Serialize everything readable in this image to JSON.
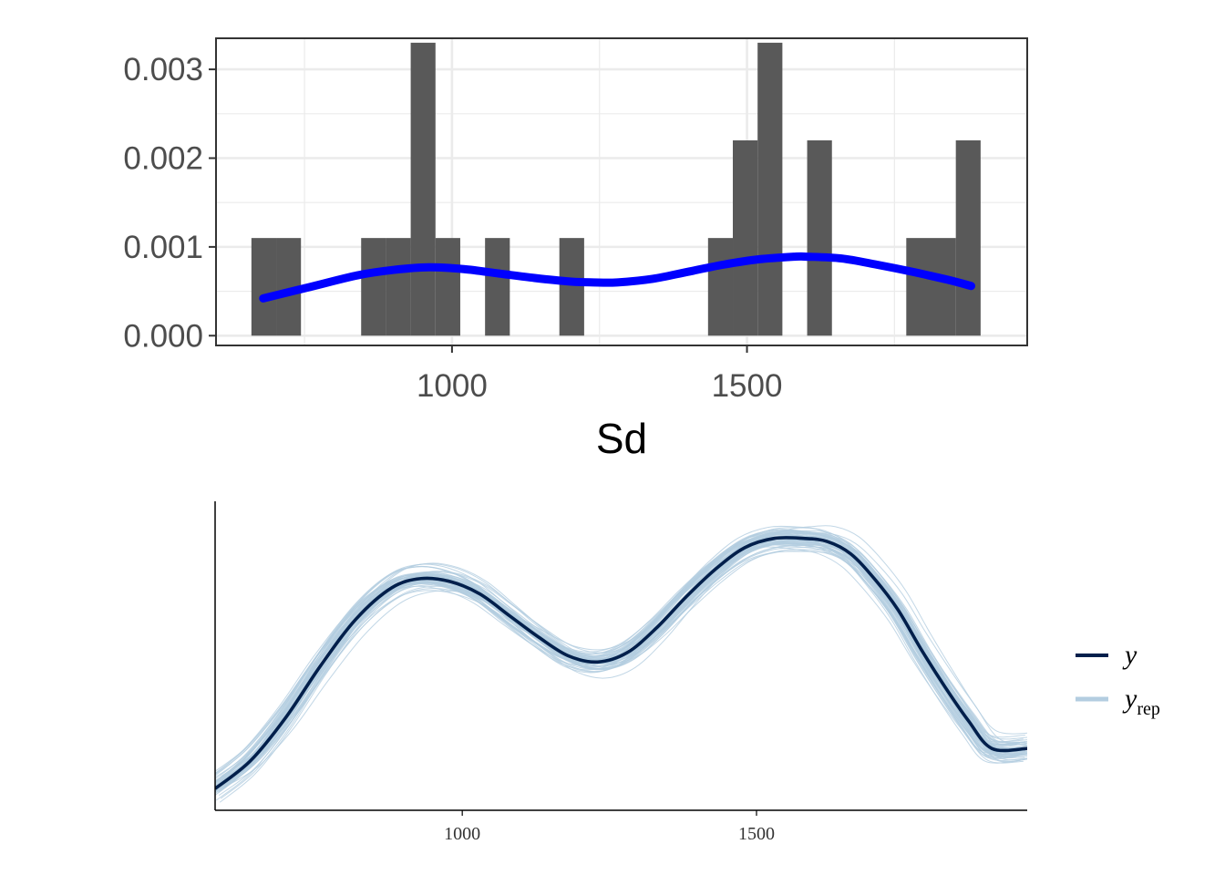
{
  "chart_data": [
    {
      "type": "bar",
      "subtype": "histogram",
      "title": "",
      "xlabel": "Sd",
      "ylabel": "",
      "xlim": [
        600,
        1975
      ],
      "ylim": [
        -0.00011,
        0.00335
      ],
      "x_ticks": [
        1000,
        1500
      ],
      "x_tick_labels": [
        "1000",
        "1500"
      ],
      "y_ticks": [
        0.0,
        0.001,
        0.002,
        0.003
      ],
      "y_tick_labels": [
        "0.000",
        "0.001",
        "0.002",
        "0.003"
      ],
      "grid": true,
      "bar_color": "#595959",
      "bins": [
        {
          "x0": 660,
          "x1": 702,
          "value": 0.0011
        },
        {
          "x0": 702,
          "x1": 744,
          "value": 0.0011
        },
        {
          "x0": 846,
          "x1": 888,
          "value": 0.0011
        },
        {
          "x0": 888,
          "x1": 930,
          "value": 0.0011
        },
        {
          "x0": 930,
          "x1": 972,
          "value": 0.0033
        },
        {
          "x0": 972,
          "x1": 1014,
          "value": 0.0011
        },
        {
          "x0": 1056,
          "x1": 1098,
          "value": 0.0011
        },
        {
          "x0": 1182,
          "x1": 1224,
          "value": 0.0011
        },
        {
          "x0": 1434,
          "x1": 1476,
          "value": 0.0011
        },
        {
          "x0": 1476,
          "x1": 1518,
          "value": 0.0022
        },
        {
          "x0": 1518,
          "x1": 1560,
          "value": 0.0033
        },
        {
          "x0": 1602,
          "x1": 1644,
          "value": 0.0022
        },
        {
          "x0": 1770,
          "x1": 1812,
          "value": 0.0011
        },
        {
          "x0": 1812,
          "x1": 1854,
          "value": 0.0011
        },
        {
          "x0": 1854,
          "x1": 1896,
          "value": 0.0022
        }
      ],
      "density_line": {
        "color": "#0000ff",
        "x": [
          680,
          760,
          840,
          900,
          960,
          1020,
          1080,
          1140,
          1200,
          1240,
          1280,
          1340,
          1400,
          1460,
          1520,
          1580,
          1600,
          1660,
          1720,
          1780,
          1840,
          1880
        ],
        "y": [
          0.00042,
          0.00055,
          0.00068,
          0.00074,
          0.00077,
          0.00075,
          0.0007,
          0.00065,
          0.00061,
          0.0006,
          0.0006,
          0.00064,
          0.00072,
          0.0008,
          0.00086,
          0.00089,
          0.00089,
          0.00087,
          0.0008,
          0.00072,
          0.00063,
          0.00056
        ]
      }
    },
    {
      "type": "line",
      "subtype": "density-overlay",
      "title": "",
      "xlabel": "",
      "ylabel": "",
      "xlim": [
        580,
        1960
      ],
      "ylim": [
        0,
        1
      ],
      "x_ticks": [
        1000,
        1500
      ],
      "x_tick_labels": [
        "1000",
        "1500"
      ],
      "grid": false,
      "legend": {
        "placement": "right",
        "entries": [
          {
            "label": "y",
            "subscript": "",
            "color": "#011f4b"
          },
          {
            "label": "y",
            "subscript": "rep",
            "color": "#b3cde0"
          }
        ]
      },
      "observed": {
        "name": "y",
        "color": "#011f4b",
        "x": [
          580,
          640,
          700,
          760,
          820,
          880,
          930,
          980,
          1030,
          1080,
          1130,
          1180,
          1230,
          1280,
          1330,
          1380,
          1430,
          1480,
          1530,
          1580,
          1620,
          1660,
          1700,
          1740,
          1780,
          1820,
          1860,
          1900,
          1960
        ],
        "y": [
          0.07,
          0.16,
          0.3,
          0.47,
          0.62,
          0.72,
          0.75,
          0.74,
          0.7,
          0.63,
          0.56,
          0.5,
          0.48,
          0.51,
          0.59,
          0.69,
          0.78,
          0.85,
          0.88,
          0.88,
          0.87,
          0.83,
          0.75,
          0.65,
          0.52,
          0.4,
          0.29,
          0.2,
          0.2
        ]
      },
      "replicates": {
        "name": "y_rep",
        "color": "#b3cde0",
        "count": 60
      }
    }
  ]
}
